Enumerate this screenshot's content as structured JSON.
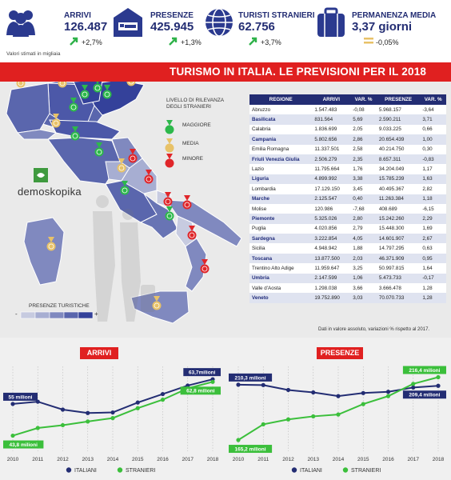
{
  "stats": [
    {
      "label": "ARRIVI",
      "value": "126.487",
      "change": "+2,7%",
      "icon": "people-icon",
      "trend": "up"
    },
    {
      "label": "PRESENZE",
      "value": "425.945",
      "change": "+1,3%",
      "icon": "hotel-bed-icon",
      "trend": "up"
    },
    {
      "label": "TURISTI STRANIERI",
      "value": "62.756",
      "change": "+3,7%",
      "icon": "globe-icon",
      "trend": "up"
    },
    {
      "label": "PERMANENZA MEDIA",
      "value": "3,37 giorni",
      "change": "-0,05%",
      "icon": "suitcase-icon",
      "trend": "flat"
    }
  ],
  "note_top": "Valori stimati in migliaia",
  "banner_title": "TURISMO IN ITALIA. LE PREVISIONI PER IL 2018",
  "map_legend": {
    "title": "LIVELLO DI RILEVANZA DEGLI STRANIERI",
    "items": [
      {
        "label": "MAGGIORE",
        "color": "#2db84b"
      },
      {
        "label": "MEDIA",
        "color": "#e8c268"
      },
      {
        "label": "MINORE",
        "color": "#e0262a"
      }
    ]
  },
  "logo": "demoskopika",
  "scale": {
    "label": "PRESENZE TURISTICHE",
    "minus": "-",
    "plus": "+",
    "colors": [
      "#c7cbe0",
      "#a7aed2",
      "#8089bf",
      "#5a66ad",
      "#34419a"
    ]
  },
  "table": {
    "headers": [
      "REGIONE",
      "ARRIVI",
      "VAR. %",
      "PRESENZE",
      "VAR. %"
    ],
    "rows": [
      [
        "Abruzzo",
        "1.547.483",
        "-0,08",
        "5.968.157",
        "-3,64"
      ],
      [
        "Basilicata",
        "831.564",
        "5,69",
        "2.590.211",
        "3,71"
      ],
      [
        "Calabria",
        "1.836.699",
        "2,05",
        "9.033.225",
        "0,66"
      ],
      [
        "Campania",
        "5.802.656",
        "2,86",
        "20.654.439",
        "1,00"
      ],
      [
        "Emilia Romagna",
        "11.337.501",
        "2,58",
        "40.214.750",
        "0,30"
      ],
      [
        "Friuli Venezia Giulia",
        "2.506.279",
        "2,35",
        "8.657.311",
        "-0,83"
      ],
      [
        "Lazio",
        "11.795.664",
        "1,76",
        "34.204.049",
        "1,17"
      ],
      [
        "Liguria",
        "4.899.992",
        "3,38",
        "15.785.239",
        "1,63"
      ],
      [
        "Lombardia",
        "17.129.150",
        "3,45",
        "40.495.367",
        "2,82"
      ],
      [
        "Marche",
        "2.125.547",
        "0,40",
        "11.263.384",
        "1,18"
      ],
      [
        "Molise",
        "120.986",
        "-7,68",
        "408.689",
        "-6,15"
      ],
      [
        "Piemonte",
        "5.325.026",
        "2,80",
        "15.242.260",
        "2,29"
      ],
      [
        "Puglia",
        "4.020.856",
        "2,79",
        "15.448.300",
        "1,69"
      ],
      [
        "Sardegna",
        "3.222.854",
        "4,05",
        "14.601.907",
        "2,67"
      ],
      [
        "Sicilia",
        "4.948.942",
        "1,88",
        "14.797.295",
        "0,63"
      ],
      [
        "Toscana",
        "13.877.500",
        "2,03",
        "46.371.909",
        "0,95"
      ],
      [
        "Trentino Alto Adige",
        "11.959.647",
        "3,25",
        "50.997.815",
        "1,64"
      ],
      [
        "Umbria",
        "2.147.599",
        "1,06",
        "5.473.733",
        "-0,17"
      ],
      [
        "Valle d'Aosta",
        "1.298.038",
        "3,66",
        "3.666.478",
        "1,28"
      ],
      [
        "Veneto",
        "19.752.890",
        "3,03",
        "70.070.733",
        "1,28"
      ]
    ],
    "note": "Dati in valore assoluto, variazioni % rispetto  al 2017."
  },
  "chart_data": [
    {
      "type": "line",
      "title": "ARRIVI",
      "x": [
        2010,
        2011,
        2012,
        2013,
        2014,
        2015,
        2016,
        2017,
        2018
      ],
      "ylim": [
        40,
        66
      ],
      "series": [
        {
          "name": "ITALIANI",
          "color": "#232d73",
          "values": [
            55,
            55.8,
            53,
            51.8,
            52,
            55.5,
            58.5,
            61.5,
            63.7
          ]
        },
        {
          "name": "STRANIERI",
          "color": "#3bbf3b",
          "values": [
            43.8,
            46.5,
            47.5,
            48.8,
            50,
            53.5,
            56.5,
            60.5,
            62.8
          ]
        }
      ],
      "labels": [
        {
          "text": "55 milioni",
          "series": 0,
          "index": 0
        },
        {
          "text": "43,8 milioni",
          "series": 1,
          "index": 0
        },
        {
          "text": "63,7milioni",
          "series": 0,
          "index": 8
        },
        {
          "text": "62,8 milioni",
          "series": 1,
          "index": 8
        }
      ]
    },
    {
      "type": "line",
      "title": "PRESENZE",
      "x": [
        2010,
        2011,
        2012,
        2013,
        2014,
        2015,
        2016,
        2017,
        2018
      ],
      "ylim": [
        160,
        220
      ],
      "series": [
        {
          "name": "ITALIANI",
          "color": "#232d73",
          "values": [
            210.3,
            210,
            206,
            204,
            201,
            203.5,
            204.5,
            208,
            209.4
          ]
        },
        {
          "name": "STRANIERI",
          "color": "#3bbf3b",
          "values": [
            165.2,
            178,
            182,
            184.5,
            186,
            194.5,
            201,
            211,
            216.4
          ]
        }
      ],
      "labels": [
        {
          "text": "210,3 milioni",
          "series": 0,
          "index": 0
        },
        {
          "text": "165,2 milioni",
          "series": 1,
          "index": 0
        },
        {
          "text": "216,4 milioni",
          "series": 1,
          "index": 8
        },
        {
          "text": "209,4 milioni",
          "series": 0,
          "index": 8
        }
      ]
    }
  ]
}
